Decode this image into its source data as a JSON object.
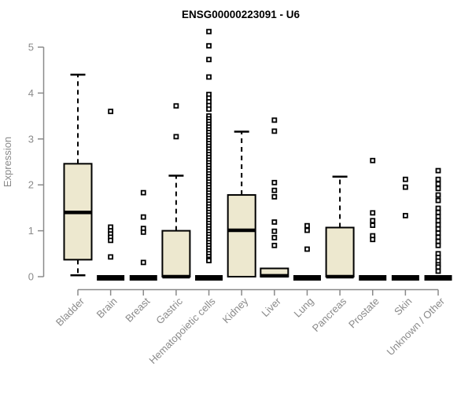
{
  "chart_data": {
    "type": "boxplot",
    "title": "ENSG00000223091 - U6",
    "ylabel": "Expression",
    "xlabel": "",
    "ylim": [
      0,
      5.4
    ],
    "yticks": [
      0,
      1,
      2,
      3,
      4,
      5
    ],
    "grid": false,
    "legend": "none",
    "marker": "open-square",
    "colors": {
      "box_fill": "#EDE8CF",
      "box_border": "#000000",
      "median": "#000000",
      "axis": "#8A8A8A",
      "title": "#000000",
      "background": "#FFFFFF"
    },
    "categories": [
      "Bladder",
      "Brain",
      "Breast",
      "Gastric",
      "Hematopoietic cells",
      "Kidney",
      "Liver",
      "Lung",
      "Pancreas",
      "Prostate",
      "Skin",
      "Unknown / Other"
    ],
    "boxes": [
      {
        "category": "Bladder",
        "q1": 0.37,
        "median": 1.4,
        "q3": 2.46,
        "whisker_low": 0.03,
        "whisker_high": 4.4,
        "outliers": []
      },
      {
        "category": "Brain",
        "q1": 0,
        "median": 0,
        "q3": 0,
        "whisker_low": 0,
        "whisker_high": 0,
        "outliers": [
          3.6,
          1.08,
          1.0,
          0.93,
          0.86,
          0.79,
          0.43
        ]
      },
      {
        "category": "Breast",
        "q1": 0,
        "median": 0,
        "q3": 0,
        "whisker_low": 0,
        "whisker_high": 0,
        "outliers": [
          1.83,
          1.3,
          1.05,
          0.97,
          0.31
        ]
      },
      {
        "category": "Gastric",
        "q1": 0,
        "median": 0,
        "q3": 1.0,
        "whisker_low": 0,
        "whisker_high": 2.2,
        "outliers": [
          3.72,
          3.05
        ]
      },
      {
        "category": "Hematopoietic cells",
        "q1": 0,
        "median": 0,
        "q3": 0,
        "whisker_low": 0,
        "whisker_high": 0,
        "outliers": [
          5.34,
          5.03,
          4.73,
          4.35,
          3.97,
          3.89,
          3.81,
          3.73,
          3.65,
          3.5,
          3.44,
          3.38,
          3.32,
          3.26,
          3.2,
          3.14,
          3.08,
          3.02,
          2.96,
          2.9,
          2.84,
          2.78,
          2.72,
          2.66,
          2.6,
          2.54,
          2.48,
          2.42,
          2.36,
          2.3,
          2.24,
          2.18,
          2.12,
          2.06,
          2.0,
          1.94,
          1.88,
          1.82,
          1.76,
          1.7,
          1.64,
          1.58,
          1.52,
          1.46,
          1.4,
          1.34,
          1.28,
          1.22,
          1.16,
          1.1,
          1.04,
          0.98,
          0.92,
          0.86,
          0.8,
          0.74,
          0.68,
          0.62,
          0.56,
          0.5,
          0.44,
          0.38,
          0.35
        ]
      },
      {
        "category": "Kidney",
        "q1": 0,
        "median": 1.01,
        "q3": 1.78,
        "whisker_low": 0,
        "whisker_high": 3.16,
        "outliers": []
      },
      {
        "category": "Liver",
        "q1": 0,
        "median": 0.02,
        "q3": 0.18,
        "whisker_low": 0,
        "whisker_high": 0.18,
        "outliers": [
          3.41,
          3.17,
          2.05,
          1.88,
          1.74,
          1.19,
          0.99,
          0.85,
          0.68
        ]
      },
      {
        "category": "Lung",
        "q1": 0,
        "median": 0,
        "q3": 0,
        "whisker_low": 0,
        "whisker_high": 0,
        "outliers": [
          1.11,
          1.01,
          0.6
        ]
      },
      {
        "category": "Pancreas",
        "q1": 0,
        "median": 0,
        "q3": 1.07,
        "whisker_low": 0,
        "whisker_high": 2.18,
        "outliers": []
      },
      {
        "category": "Prostate",
        "q1": 0,
        "median": 0,
        "q3": 0,
        "whisker_low": 0,
        "whisker_high": 0,
        "outliers": [
          2.53,
          1.39,
          1.22,
          1.12,
          0.89,
          0.81
        ]
      },
      {
        "category": "Skin",
        "q1": 0,
        "median": 0,
        "q3": 0,
        "whisker_low": 0,
        "whisker_high": 0,
        "outliers": [
          2.12,
          1.95,
          1.33
        ]
      },
      {
        "category": "Unknown / Other",
        "q1": 0,
        "median": 0,
        "q3": 0,
        "whisker_low": 0,
        "whisker_high": 0,
        "outliers": [
          2.31,
          2.12,
          2.02,
          1.92,
          1.78,
          1.66,
          1.49,
          1.4,
          1.31,
          1.22,
          1.13,
          1.04,
          0.95,
          0.86,
          0.77,
          0.68,
          0.5,
          0.42,
          0.34,
          0.26,
          0.21,
          0.12
        ]
      }
    ]
  }
}
